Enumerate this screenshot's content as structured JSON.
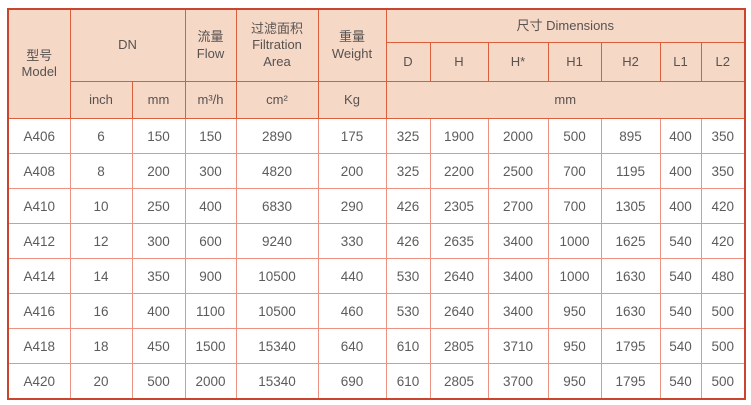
{
  "table": {
    "header": {
      "model": {
        "zh": "型号",
        "en": "Model"
      },
      "dn": "DN",
      "flow": {
        "zh": "流量",
        "en": "Flow"
      },
      "filtration": {
        "zh": "过滤面积",
        "en": "Filtration Area"
      },
      "weight": {
        "zh": "重量",
        "en": "Weight"
      },
      "dimensions": {
        "zh": "尺寸",
        "en": "Dimensions"
      },
      "dim_cols": [
        "D",
        "H",
        "H*",
        "H1",
        "H2",
        "L1",
        "L2"
      ],
      "units": {
        "inch": "inch",
        "mm": "mm",
        "flow": "m³/h",
        "area": "cm²",
        "weight": "Kg",
        "dimensions": "mm"
      }
    },
    "columns": [
      "model",
      "dn_inch",
      "dn_mm",
      "flow",
      "filtration_area",
      "weight",
      "D",
      "H",
      "H*",
      "H1",
      "H2",
      "L1",
      "L2"
    ],
    "rows": [
      {
        "model": "A406",
        "values": [
          "6",
          "150",
          "150",
          "2890",
          "175",
          "325",
          "1900",
          "2000",
          "500",
          "895",
          "400",
          "350"
        ]
      },
      {
        "model": "A408",
        "values": [
          "8",
          "200",
          "300",
          "4820",
          "200",
          "325",
          "2200",
          "2500",
          "700",
          "1195",
          "400",
          "350"
        ]
      },
      {
        "model": "A410",
        "values": [
          "10",
          "250",
          "400",
          "6830",
          "290",
          "426",
          "2305",
          "2700",
          "700",
          "1305",
          "400",
          "420"
        ]
      },
      {
        "model": "A412",
        "values": [
          "12",
          "300",
          "600",
          "9240",
          "330",
          "426",
          "2635",
          "3400",
          "1000",
          "1625",
          "540",
          "420"
        ]
      },
      {
        "model": "A414",
        "values": [
          "14",
          "350",
          "900",
          "10500",
          "440",
          "530",
          "2640",
          "3400",
          "1000",
          "1630",
          "540",
          "480"
        ]
      },
      {
        "model": "A416",
        "values": [
          "16",
          "400",
          "1100",
          "10500",
          "460",
          "530",
          "2640",
          "3400",
          "950",
          "1630",
          "540",
          "500"
        ]
      },
      {
        "model": "A418",
        "values": [
          "18",
          "450",
          "1500",
          "15340",
          "640",
          "610",
          "2805",
          "3710",
          "950",
          "1795",
          "540",
          "500"
        ]
      },
      {
        "model": "A420",
        "values": [
          "20",
          "500",
          "2000",
          "15340",
          "690",
          "610",
          "2805",
          "3700",
          "950",
          "1795",
          "540",
          "500"
        ]
      }
    ],
    "colors": {
      "header_bg": "#f6d8c7",
      "header_border": "#dc5f3b",
      "body_border": "#ec9282",
      "outer_border": "#c9452e",
      "text": "#5c5c5c"
    }
  }
}
